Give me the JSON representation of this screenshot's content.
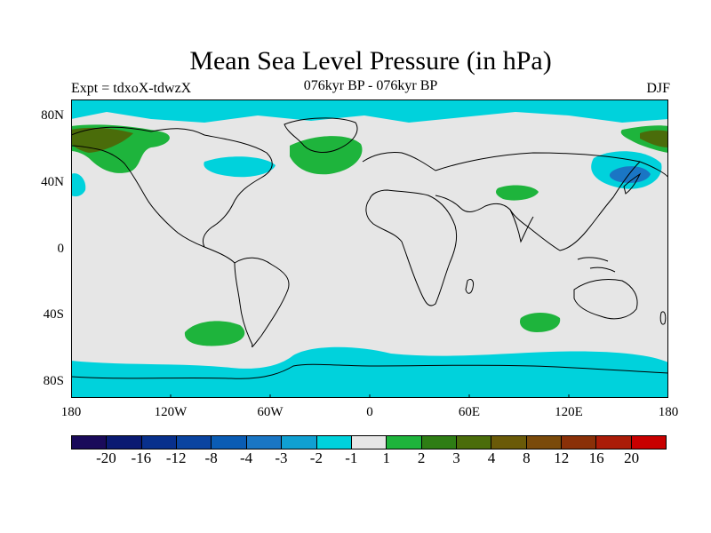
{
  "title": "Mean Sea Level Pressure (in hPa)",
  "subtitle": "076kyr BP - 076kyr BP",
  "expt": "Expt = tdxoX-tdwzX",
  "season": "DJF",
  "lat_labels": [
    "80N",
    "40N",
    "0",
    "40S",
    "80S"
  ],
  "lon_labels": [
    "180",
    "120W",
    "60W",
    "0",
    "60E",
    "120E",
    "180"
  ],
  "colorbar": {
    "colors": [
      "#1a0a5a",
      "#0a1a72",
      "#08308c",
      "#0a44a0",
      "#0a5cb4",
      "#1a76c4",
      "#10a0d2",
      "#00d2dc",
      "#e6e6e6",
      "#1eb43c",
      "#2e7d14",
      "#4a6c0a",
      "#6a5a08",
      "#7a4a0a",
      "#8a3008",
      "#aa1c08",
      "#c80000"
    ],
    "labels": [
      "-20",
      "-16",
      "-12",
      "-8",
      "-4",
      "-3",
      "-2",
      "-1",
      "1",
      "2",
      "3",
      "4",
      "8",
      "12",
      "16",
      "20"
    ]
  },
  "map": {
    "background_color": "#e6e6e6",
    "coastline_color": "#000000"
  }
}
